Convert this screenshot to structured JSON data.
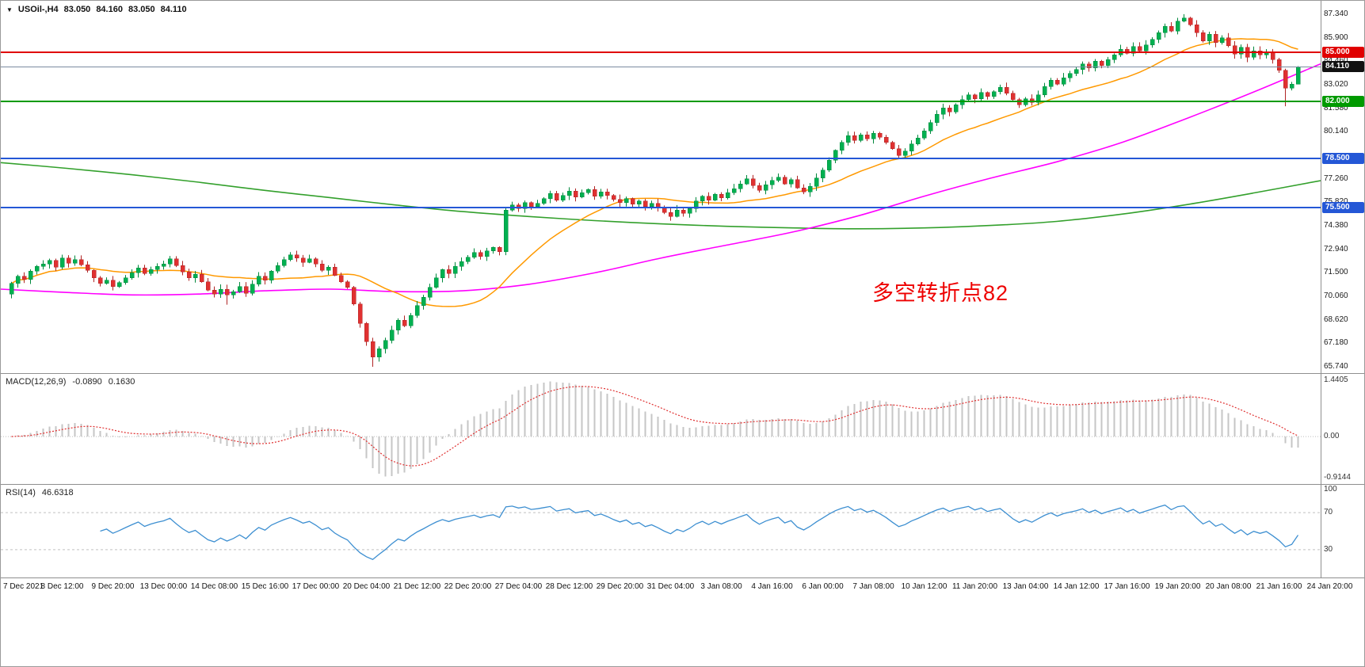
{
  "symbol_bar": {
    "symbol": "USOil-,H4",
    "ohlc": [
      "83.050",
      "84.160",
      "83.050",
      "84.110"
    ]
  },
  "annotation": {
    "text": "多空转折点82",
    "color": "#ee0000"
  },
  "chart_data": {
    "type": "candlestick",
    "title": "USOil-,H4",
    "symbol": "USOil-",
    "timeframe": "H4",
    "ylim": [
      65.36,
      88.16
    ],
    "price_ticks": [
      "87.340",
      "85.900",
      "84.460",
      "83.020",
      "81.580",
      "80.140",
      "78.700",
      "77.260",
      "75.820",
      "74.380",
      "72.940",
      "71.500",
      "70.060",
      "68.620",
      "67.180",
      "65.740"
    ],
    "x_labels": [
      "7 Dec 2021",
      "8 Dec 12:00",
      "9 Dec 20:00",
      "13 Dec 00:00",
      "14 Dec 08:00",
      "15 Dec 16:00",
      "17 Dec 00:00",
      "20 Dec 04:00",
      "21 Dec 12:00",
      "22 Dec 20:00",
      "27 Dec 04:00",
      "28 Dec 12:00",
      "29 Dec 20:00",
      "31 Dec 04:00",
      "3 Jan 08:00",
      "4 Jan 16:00",
      "6 Jan 00:00",
      "7 Jan 08:00",
      "10 Jan 12:00",
      "11 Jan 20:00",
      "13 Jan 04:00",
      "14 Jan 12:00",
      "17 Jan 16:00",
      "19 Jan 20:00",
      "20 Jan 08:00",
      "21 Jan 16:00",
      "24 Jan 20:00"
    ],
    "first_open": 70.2,
    "wick_seed": 9,
    "closes": [
      70.85,
      71.3,
      71.1,
      71.6,
      71.9,
      72.05,
      72.25,
      71.85,
      72.4,
      72.1,
      72.3,
      72.0,
      71.65,
      71.2,
      70.85,
      71.05,
      70.65,
      70.9,
      71.2,
      71.5,
      71.8,
      71.45,
      71.7,
      71.9,
      72.05,
      72.35,
      71.95,
      71.55,
      71.2,
      71.4,
      70.95,
      70.45,
      70.2,
      70.5,
      70.15,
      70.35,
      70.65,
      70.25,
      70.8,
      71.3,
      71.05,
      71.6,
      71.95,
      72.3,
      72.6,
      72.4,
      72.15,
      72.35,
      72.05,
      71.65,
      71.85,
      71.35,
      70.95,
      70.6,
      69.6,
      68.4,
      67.3,
      66.35,
      66.85,
      67.35,
      68.0,
      68.6,
      68.25,
      68.9,
      69.5,
      70.0,
      70.6,
      71.2,
      71.7,
      71.45,
      71.9,
      72.2,
      72.45,
      72.75,
      72.5,
      72.85,
      73.05,
      72.8,
      75.35,
      75.65,
      75.45,
      75.8,
      75.55,
      75.75,
      76.05,
      76.35,
      75.95,
      76.25,
      76.5,
      76.15,
      76.4,
      76.6,
      76.2,
      76.45,
      76.25,
      76.0,
      75.8,
      76.05,
      75.7,
      75.9,
      75.55,
      75.75,
      75.5,
      75.2,
      74.95,
      75.35,
      75.15,
      75.45,
      75.9,
      76.2,
      75.95,
      76.3,
      76.1,
      76.4,
      76.65,
      76.95,
      77.25,
      76.85,
      76.55,
      76.9,
      77.15,
      77.35,
      76.95,
      77.2,
      76.7,
      76.45,
      76.8,
      77.3,
      77.8,
      78.4,
      79.0,
      79.5,
      79.9,
      79.6,
      79.95,
      79.7,
      80.05,
      79.8,
      79.5,
      79.1,
      78.7,
      78.95,
      79.4,
      79.75,
      80.2,
      80.7,
      81.2,
      81.6,
      81.35,
      81.8,
      82.1,
      82.4,
      82.15,
      82.55,
      82.3,
      82.6,
      82.85,
      82.5,
      82.1,
      81.8,
      82.15,
      81.95,
      82.4,
      82.9,
      83.3,
      83.05,
      83.45,
      83.7,
      83.95,
      84.3,
      84.05,
      84.45,
      84.2,
      84.55,
      84.85,
      85.2,
      84.95,
      85.35,
      85.1,
      85.45,
      85.8,
      86.2,
      86.6,
      86.3,
      86.9,
      87.1,
      86.7,
      86.2,
      85.7,
      86.1,
      85.6,
      85.9,
      85.4,
      84.9,
      85.3,
      84.7,
      85.1,
      84.85,
      85.05,
      84.55,
      83.9,
      82.8,
      83.05,
      84.11
    ],
    "overrides": {
      "34": {
        "low": 69.55
      },
      "57": {
        "low": 65.75
      },
      "185": {
        "high": 87.34
      },
      "201": {
        "low": 81.7
      },
      "203": {
        "open": 83.05,
        "high": 84.16,
        "low": 83.05
      }
    },
    "colors": {
      "bull_fill": "#00b050",
      "bull_stroke": "#00893d",
      "bear_fill": "#e03131",
      "bear_stroke": "#b02525"
    },
    "levels": [
      {
        "price": 85.0,
        "label": "85.000",
        "color": "#e00000"
      },
      {
        "price": 82.0,
        "label": "82.000",
        "color": "#009a00"
      },
      {
        "price": 78.5,
        "label": "78.500",
        "color": "#2457d6"
      },
      {
        "price": 75.5,
        "label": "75.500",
        "color": "#2457d6"
      }
    ],
    "bid": {
      "price": 84.11,
      "label": "84.110",
      "line_color": "#7a8ba0",
      "badge_bg": "#111111"
    },
    "ma_lines": {
      "orange": {
        "type": "sma",
        "period": 20,
        "color": "#ff9900"
      },
      "magenta": {
        "type": "anchors",
        "color": "#ff00ff",
        "points": [
          [
            0,
            70.5
          ],
          [
            0.05,
            70.3
          ],
          [
            0.1,
            70.15
          ],
          [
            0.15,
            70.2
          ],
          [
            0.2,
            70.4
          ],
          [
            0.25,
            70.5
          ],
          [
            0.3,
            70.35
          ],
          [
            0.35,
            70.4
          ],
          [
            0.4,
            70.8
          ],
          [
            0.45,
            71.5
          ],
          [
            0.5,
            72.4
          ],
          [
            0.55,
            73.2
          ],
          [
            0.6,
            74.0
          ],
          [
            0.65,
            75.0
          ],
          [
            0.7,
            76.2
          ],
          [
            0.75,
            77.3
          ],
          [
            0.8,
            78.3
          ],
          [
            0.85,
            79.5
          ],
          [
            0.9,
            81.0
          ],
          [
            0.95,
            82.6
          ],
          [
            1,
            84.3
          ]
        ]
      },
      "green": {
        "type": "anchors",
        "color": "#33a02c",
        "points": [
          [
            0,
            78.25
          ],
          [
            0.05,
            77.9
          ],
          [
            0.1,
            77.5
          ],
          [
            0.15,
            77.05
          ],
          [
            0.2,
            76.55
          ],
          [
            0.25,
            76.1
          ],
          [
            0.3,
            75.65
          ],
          [
            0.35,
            75.25
          ],
          [
            0.4,
            74.95
          ],
          [
            0.45,
            74.7
          ],
          [
            0.5,
            74.5
          ],
          [
            0.55,
            74.35
          ],
          [
            0.6,
            74.25
          ],
          [
            0.65,
            74.2
          ],
          [
            0.7,
            74.25
          ],
          [
            0.75,
            74.4
          ],
          [
            0.8,
            74.65
          ],
          [
            0.85,
            75.1
          ],
          [
            0.9,
            75.7
          ],
          [
            0.95,
            76.4
          ],
          [
            1,
            77.15
          ]
        ]
      }
    },
    "indicators": {
      "macd": {
        "label": "MACD(12,26,9)",
        "value_main": "-0.0890",
        "value_signal": "0.1630",
        "fast": 12,
        "slow": 26,
        "signal_period": 9,
        "axis_labels": {
          "max": "1.4405",
          "zero": "0.00",
          "min": "-0.9144"
        },
        "hist_color": "#c6c6c6",
        "signal_color": "#e03131",
        "zero_color": "#bdbdbd"
      },
      "rsi": {
        "label": "RSI(14)",
        "value": "46.6318",
        "period": 14,
        "level_labels": [
          "100",
          "70",
          "30"
        ],
        "levels": [
          70,
          30
        ],
        "line_color": "#3d8fd1",
        "level_color": "#c0c0c0"
      }
    }
  }
}
